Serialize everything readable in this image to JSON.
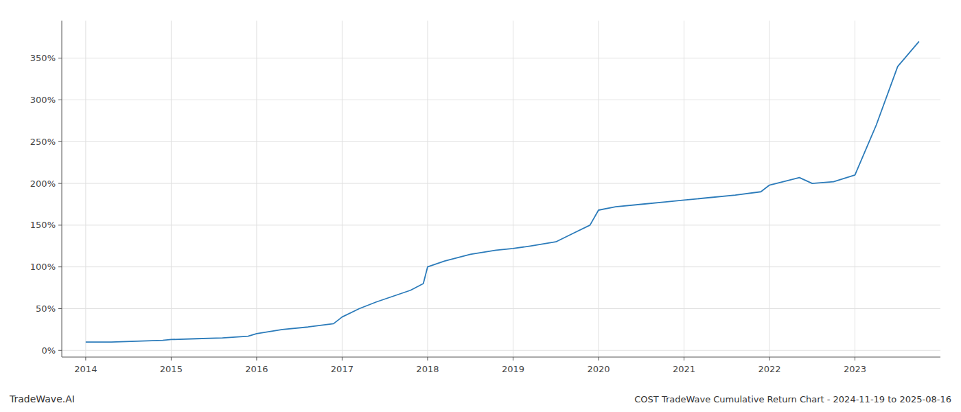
{
  "chart_data": {
    "type": "line",
    "title": "COST TradeWave Cumulative Return Chart - 2024-11-19 to 2025-08-16",
    "annotations": [
      "TradeWave.AI"
    ],
    "color": "#2b7bba",
    "grid": true,
    "x": [
      2014.0,
      2014.3,
      2014.6,
      2014.9,
      2015.0,
      2015.3,
      2015.6,
      2015.9,
      2016.0,
      2016.3,
      2016.6,
      2016.9,
      2017.0,
      2017.2,
      2017.4,
      2017.6,
      2017.8,
      2017.95,
      2018.0,
      2018.2,
      2018.5,
      2018.8,
      2019.0,
      2019.2,
      2019.5,
      2019.7,
      2019.9,
      2020.0,
      2020.2,
      2020.5,
      2020.8,
      2021.0,
      2021.3,
      2021.6,
      2021.9,
      2022.0,
      2022.2,
      2022.35,
      2022.5,
      2022.75,
      2023.0,
      2023.25,
      2023.5,
      2023.75
    ],
    "values": [
      10,
      10,
      11,
      12,
      13,
      14,
      15,
      17,
      20,
      25,
      28,
      32,
      40,
      50,
      58,
      65,
      72,
      80,
      100,
      107,
      115,
      120,
      122,
      125,
      130,
      140,
      150,
      168,
      172,
      175,
      178,
      180,
      183,
      186,
      190,
      198,
      203,
      207,
      200,
      202,
      210,
      270,
      340,
      370
    ],
    "xlim": [
      2013.72,
      2024.0
    ],
    "xticks": [
      2014,
      2015,
      2016,
      2017,
      2018,
      2019,
      2020,
      2021,
      2022,
      2023
    ],
    "ylim": [
      -8,
      395
    ],
    "yticks": [
      {
        "value": 0,
        "label": "0%"
      },
      {
        "value": 50,
        "label": "50%"
      },
      {
        "value": 100,
        "label": "100%"
      },
      {
        "value": 150,
        "label": "150%"
      },
      {
        "value": 200,
        "label": "200%"
      },
      {
        "value": 250,
        "label": "250%"
      },
      {
        "value": 300,
        "label": "300%"
      },
      {
        "value": 350,
        "label": "350%"
      }
    ]
  }
}
